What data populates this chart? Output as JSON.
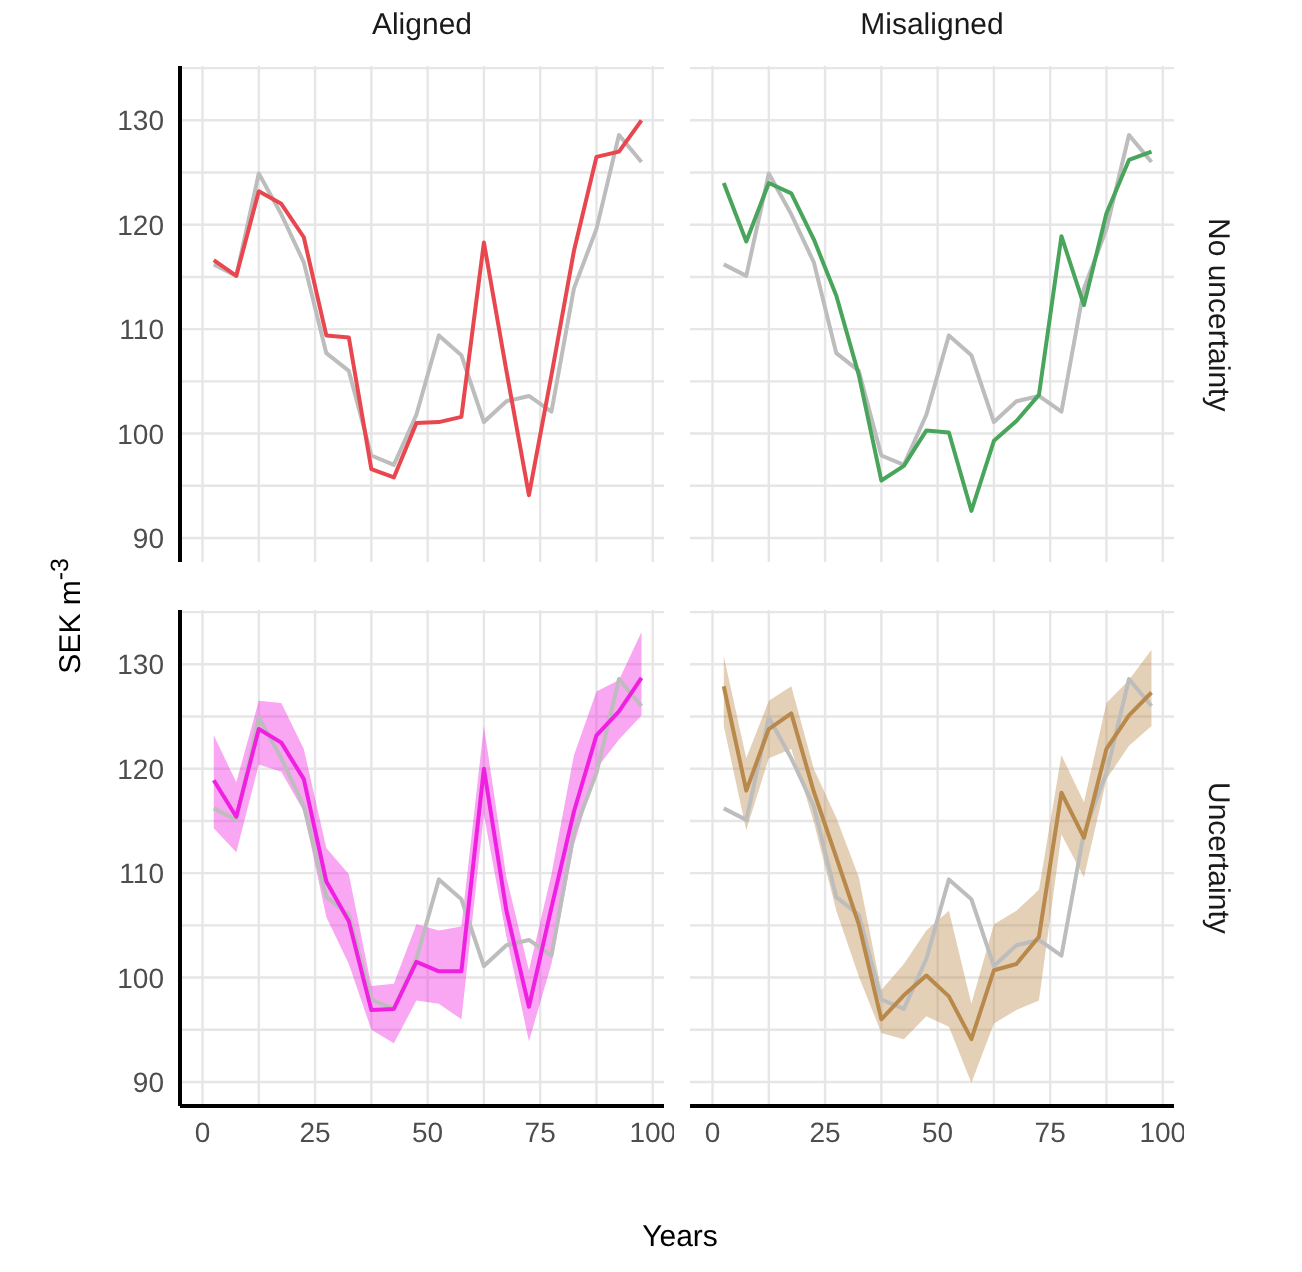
{
  "chart_data": [
    {
      "type": "line",
      "title": "Aligned",
      "ylabel": "SEK m$^{-3}$",
      "x": [
        2.5,
        7.5,
        12.5,
        17.5,
        22.5,
        27.5,
        32.5,
        37.5,
        42.5,
        47.5,
        52.5,
        57.5,
        62.5,
        67.5,
        72.5,
        77.5,
        82.5,
        87.5,
        92.5,
        97.5
      ],
      "xlim": [
        -5,
        102.5
      ],
      "xticks": [
        0,
        {
          "value": 12.5,
          "label": null
        },
        25,
        {
          "value": 37.5,
          "label": null
        },
        50,
        {
          "value": 62.5,
          "label": null
        },
        75,
        {
          "value": 87.5,
          "label": null
        },
        100
      ],
      "ylim": [
        87.7,
        135.2
      ],
      "yticks": [
        90,
        {
          "value": 95,
          "label": null
        },
        100,
        {
          "value": 105,
          "label": null
        },
        110,
        {
          "value": 115,
          "label": null
        },
        120,
        {
          "value": 125,
          "label": null
        },
        130,
        {
          "value": 135,
          "label": null
        }
      ],
      "grid": true,
      "marker": "none",
      "tick_labels": "y",
      "series": [
        {
          "color": "#bdbdbd",
          "values": [
            116.2,
            115.1,
            124.9,
            121,
            116.4,
            107.7,
            106,
            97.9,
            97,
            101.8,
            109.4,
            107.5,
            101.1,
            103.1,
            103.6,
            102.1,
            113.9,
            119.6,
            128.6,
            126
          ]
        },
        {
          "color": "#e8474f",
          "values": [
            116.6,
            115.1,
            123.2,
            122,
            118.8,
            109.4,
            109.2,
            96.6,
            95.8,
            101,
            101.1,
            101.6,
            118.3,
            106,
            94.1,
            105.6,
            117.5,
            126.5,
            127,
            130
          ]
        }
      ]
    },
    {
      "type": "line",
      "title": "Misaligned",
      "y2label": "No uncertainty",
      "x": [
        2.5,
        7.5,
        12.5,
        17.5,
        22.5,
        27.5,
        32.5,
        37.5,
        42.5,
        47.5,
        52.5,
        57.5,
        62.5,
        67.5,
        72.5,
        77.5,
        82.5,
        87.5,
        92.5,
        97.5
      ],
      "xlim": [
        -5,
        102.5
      ],
      "xticks": [
        0,
        {
          "value": 12.5,
          "label": null
        },
        25,
        {
          "value": 37.5,
          "label": null
        },
        50,
        {
          "value": 62.5,
          "label": null
        },
        75,
        {
          "value": 87.5,
          "label": null
        },
        100
      ],
      "ylim": [
        87.7,
        135.2
      ],
      "yticks": [
        90,
        {
          "value": 95,
          "label": null
        },
        100,
        {
          "value": 105,
          "label": null
        },
        110,
        {
          "value": 115,
          "label": null
        },
        120,
        {
          "value": 125,
          "label": null
        },
        130,
        {
          "value": 135,
          "label": null
        }
      ],
      "grid": true,
      "marker": "none",
      "tick_labels": false,
      "series": [
        {
          "color": "#bdbdbd",
          "values": [
            116.2,
            115.1,
            124.9,
            121,
            116.4,
            107.7,
            106,
            97.9,
            97,
            101.8,
            109.4,
            107.5,
            101.1,
            103.1,
            103.6,
            102.1,
            113.9,
            119.6,
            128.6,
            126
          ]
        },
        {
          "color": "#4aa55c",
          "values": [
            124,
            118.4,
            124,
            123,
            118.6,
            113.2,
            105.6,
            95.5,
            96.9,
            100.3,
            100.1,
            92.6,
            99.3,
            101.2,
            103.7,
            118.9,
            112.3,
            121.1,
            126.2,
            127
          ]
        }
      ]
    },
    {
      "type": "line",
      "xlabel": "Years",
      "x": [
        2.5,
        7.5,
        12.5,
        17.5,
        22.5,
        27.5,
        32.5,
        37.5,
        42.5,
        47.5,
        52.5,
        57.5,
        62.5,
        67.5,
        72.5,
        77.5,
        82.5,
        87.5,
        92.5,
        97.5
      ],
      "xlim": [
        -5,
        102.5
      ],
      "xticks": [
        0,
        {
          "value": 12.5,
          "label": null
        },
        25,
        {
          "value": 37.5,
          "label": null
        },
        50,
        {
          "value": 62.5,
          "label": null
        },
        75,
        {
          "value": 87.5,
          "label": null
        },
        100
      ],
      "ylim": [
        87.7,
        135.2
      ],
      "yticks": [
        90,
        {
          "value": 95,
          "label": null
        },
        100,
        {
          "value": 105,
          "label": null
        },
        110,
        {
          "value": 115,
          "label": null
        },
        120,
        {
          "value": 125,
          "label": null
        },
        130,
        {
          "value": 135,
          "label": null
        }
      ],
      "grid": true,
      "marker": "none",
      "series": [
        {
          "color": "#bdbdbd",
          "values": [
            116.2,
            115.1,
            124.9,
            121,
            116.4,
            107.7,
            106,
            97.9,
            97,
            101.8,
            109.4,
            107.5,
            101.1,
            103.1,
            103.6,
            102.1,
            113.9,
            119.6,
            128.6,
            126
          ]
        },
        {
          "color": "#f020e0",
          "values": [
            118.9,
            115.4,
            123.8,
            122.5,
            119,
            109.2,
            105.4,
            96.9,
            97,
            101.5,
            100.6,
            100.6,
            120,
            106.4,
            97.2,
            106.7,
            115.9,
            123.2,
            125.5,
            128.7
          ],
          "lower": [
            114.3,
            112,
            120.4,
            119.7,
            115.9,
            105.8,
            101.3,
            95,
            93.7,
            97.8,
            97.5,
            96,
            115.6,
            103.9,
            93.9,
            101.3,
            112.7,
            120,
            122.8,
            125.1
          ],
          "upper": [
            123.2,
            118.7,
            126.5,
            126.3,
            121.9,
            112.4,
            109.9,
            99.2,
            99.4,
            105.1,
            104.5,
            104.9,
            124.1,
            109.6,
            100.7,
            109.9,
            121.3,
            127.4,
            128.5,
            133.1
          ]
        }
      ]
    },
    {
      "type": "line",
      "y2label": "Uncertainty",
      "x": [
        2.5,
        7.5,
        12.5,
        17.5,
        22.5,
        27.5,
        32.5,
        37.5,
        42.5,
        47.5,
        52.5,
        57.5,
        62.5,
        67.5,
        72.5,
        77.5,
        82.5,
        87.5,
        92.5,
        97.5
      ],
      "xlim": [
        -5,
        102.5
      ],
      "xticks": [
        0,
        {
          "value": 12.5,
          "label": null
        },
        25,
        {
          "value": 37.5,
          "label": null
        },
        50,
        {
          "value": 62.5,
          "label": null
        },
        75,
        {
          "value": 87.5,
          "label": null
        },
        100
      ],
      "ylim": [
        87.7,
        135.2
      ],
      "yticks": [
        90,
        {
          "value": 95,
          "label": null
        },
        100,
        {
          "value": 105,
          "label": null
        },
        110,
        {
          "value": 115,
          "label": null
        },
        120,
        {
          "value": 125,
          "label": null
        },
        130,
        {
          "value": 135,
          "label": null
        }
      ],
      "grid": true,
      "marker": "none",
      "tick_labels": "x",
      "series": [
        {
          "color": "#bdbdbd",
          "values": [
            116.2,
            115.1,
            124.9,
            121,
            116.4,
            107.7,
            106,
            97.9,
            97,
            101.8,
            109.4,
            107.5,
            101.1,
            103.1,
            103.6,
            102.1,
            113.9,
            119.6,
            128.6,
            126
          ]
        },
        {
          "color": "#b8894a",
          "values": [
            127.9,
            117.9,
            123.8,
            125.3,
            117.8,
            111.5,
            105.1,
            96,
            98.3,
            100.2,
            98.2,
            94.1,
            100.7,
            101.3,
            103.9,
            117.7,
            113.4,
            121.9,
            125.1,
            127.3
          ],
          "lower": [
            124.1,
            114.1,
            121,
            121.9,
            114.9,
            106.4,
            100.1,
            94.7,
            94.1,
            96.3,
            95.3,
            89.9,
            95.6,
            96.9,
            97.8,
            113.7,
            109.6,
            119,
            122.2,
            124.1
          ],
          "upper": [
            130.8,
            121,
            126.5,
            127.9,
            120,
            115.3,
            109.6,
            98.8,
            101.3,
            104.5,
            106.4,
            97.5,
            105.1,
            106.4,
            108.4,
            121.3,
            116.8,
            126.3,
            128.5,
            131.4
          ]
        }
      ]
    }
  ]
}
